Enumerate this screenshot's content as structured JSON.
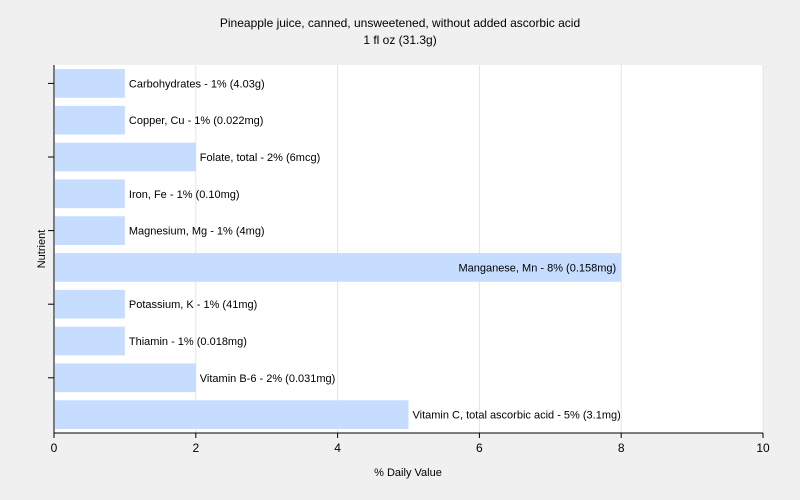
{
  "chart_data": {
    "type": "bar",
    "orientation": "horizontal",
    "title": "Pineapple juice, canned, unsweetened, without added ascorbic acid",
    "subtitle": "1 fl oz (31.3g)",
    "xlabel": "% Daily Value",
    "ylabel": "Nutrient",
    "xlim": [
      0,
      10
    ],
    "xticks": [
      0,
      2,
      4,
      6,
      8,
      10
    ],
    "grid": true,
    "bar_color": "#c6ddff",
    "categories": [
      "Carbohydrates",
      "Copper, Cu",
      "Folate, total",
      "Iron, Fe",
      "Magnesium, Mg",
      "Manganese, Mn",
      "Potassium, K",
      "Thiamin",
      "Vitamin B-6",
      "Vitamin C, total ascorbic acid"
    ],
    "values": [
      1,
      1,
      2,
      1,
      1,
      8,
      1,
      1,
      2,
      5
    ],
    "data_labels": [
      "Carbohydrates - 1% (4.03g)",
      "Copper, Cu - 1% (0.022mg)",
      "Folate, total - 2% (6mcg)",
      "Iron, Fe - 1% (0.10mg)",
      "Magnesium, Mg - 1% (4mg)",
      "Manganese, Mn - 8% (0.158mg)",
      "Potassium, K - 1% (41mg)",
      "Thiamin - 1% (0.018mg)",
      "Vitamin B-6 - 2% (0.031mg)",
      "Vitamin C, total ascorbic acid - 5% (3.1mg)"
    ]
  }
}
